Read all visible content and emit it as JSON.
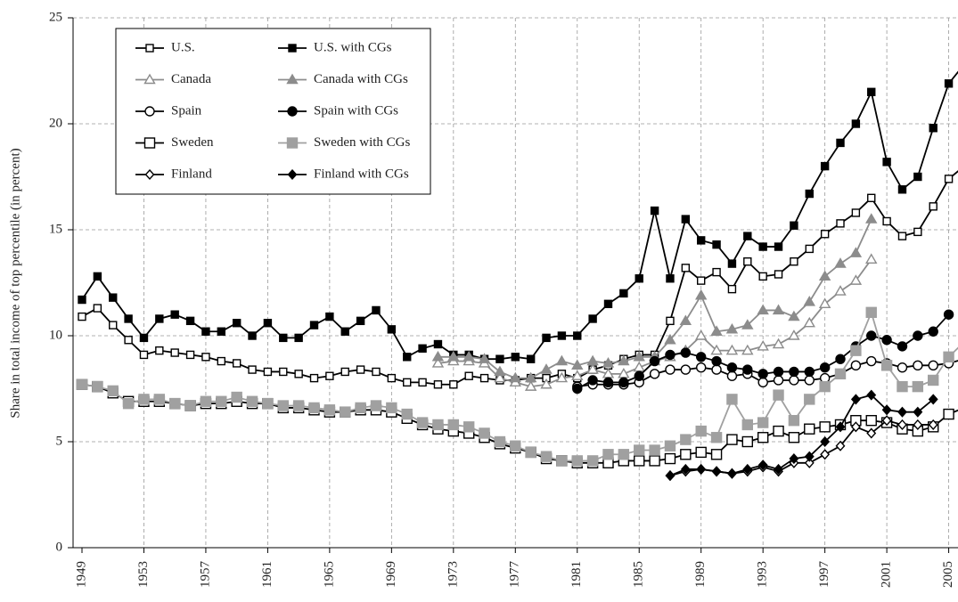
{
  "chart_data": {
    "type": "line",
    "y_label": "Share in total income of top percentile (in percent)",
    "xlim": [
      1949,
      2005.6
    ],
    "ylim": [
      0,
      25
    ],
    "xticks": [
      1949,
      1953,
      1957,
      1961,
      1965,
      1969,
      1973,
      1977,
      1981,
      1985,
      1989,
      1993,
      1997,
      2001,
      2005
    ],
    "yticks": [
      0,
      5,
      10,
      15,
      20,
      25
    ],
    "grid": true,
    "legend": "upper left",
    "series": [
      {
        "name": "U.S.",
        "color": "#000000",
        "marker": "square",
        "filled": false,
        "x": [
          1949,
          1950,
          1951,
          1952,
          1953,
          1954,
          1955,
          1956,
          1957,
          1958,
          1959,
          1960,
          1961,
          1962,
          1963,
          1964,
          1965,
          1966,
          1967,
          1968,
          1969,
          1970,
          1971,
          1972,
          1973,
          1974,
          1975,
          1976,
          1977,
          1978,
          1979,
          1980,
          1981,
          1982,
          1983,
          1984,
          1985,
          1986,
          1987,
          1988,
          1989,
          1990,
          1991,
          1992,
          1993,
          1994,
          1995,
          1996,
          1997,
          1998,
          1999,
          2000,
          2001,
          2002,
          2003,
          2004,
          2005,
          2006
        ],
        "values": [
          10.9,
          11.3,
          10.5,
          9.8,
          9.1,
          9.3,
          9.2,
          9.1,
          9.0,
          8.8,
          8.7,
          8.4,
          8.3,
          8.3,
          8.2,
          8.0,
          8.1,
          8.3,
          8.4,
          8.3,
          8.0,
          7.8,
          7.8,
          7.7,
          7.7,
          8.1,
          8.0,
          7.9,
          7.9,
          8.0,
          8.0,
          8.2,
          8.0,
          8.4,
          8.6,
          8.9,
          9.1,
          9.1,
          10.7,
          13.2,
          12.6,
          13.0,
          12.2,
          13.5,
          12.8,
          12.9,
          13.5,
          14.1,
          14.8,
          15.3,
          15.8,
          16.5,
          15.4,
          14.7,
          14.9,
          16.1,
          17.4,
          18.0
        ]
      },
      {
        "name": "U.S. with CGs",
        "color": "#000000",
        "marker": "square",
        "filled": true,
        "x": [
          1949,
          1950,
          1951,
          1952,
          1953,
          1954,
          1955,
          1956,
          1957,
          1958,
          1959,
          1960,
          1961,
          1962,
          1963,
          1964,
          1965,
          1966,
          1967,
          1968,
          1969,
          1970,
          1971,
          1972,
          1973,
          1974,
          1975,
          1976,
          1977,
          1978,
          1979,
          1980,
          1981,
          1982,
          1983,
          1984,
          1985,
          1986,
          1987,
          1988,
          1989,
          1990,
          1991,
          1992,
          1993,
          1994,
          1995,
          1996,
          1997,
          1998,
          1999,
          2000,
          2001,
          2002,
          2003,
          2004,
          2005,
          2006
        ],
        "values": [
          11.7,
          12.8,
          11.8,
          10.8,
          9.9,
          10.8,
          11.0,
          10.7,
          10.2,
          10.2,
          10.6,
          10.0,
          10.6,
          9.9,
          9.9,
          10.5,
          10.9,
          10.2,
          10.7,
          11.2,
          10.3,
          9.0,
          9.4,
          9.6,
          9.1,
          9.1,
          8.9,
          8.9,
          9.0,
          8.9,
          9.9,
          10.0,
          10.0,
          10.8,
          11.5,
          12.0,
          12.7,
          15.9,
          12.7,
          15.5,
          14.5,
          14.3,
          13.4,
          14.7,
          14.2,
          14.2,
          15.2,
          16.7,
          18.0,
          19.1,
          20.0,
          21.5,
          18.2,
          16.9,
          17.5,
          19.8,
          21.9,
          22.8
        ]
      },
      {
        "name": "Canada",
        "color": "#8c8c8c",
        "marker": "triangle",
        "filled": false,
        "x": [
          1972,
          1973,
          1974,
          1975,
          1976,
          1977,
          1978,
          1979,
          1980,
          1981,
          1982,
          1983,
          1984,
          1985,
          1986,
          1987,
          1988,
          1989,
          1990,
          1991,
          1992,
          1993,
          1994,
          1995,
          1996,
          1997,
          1998,
          1999,
          2000
        ],
        "values": [
          8.7,
          8.8,
          8.8,
          8.7,
          8.0,
          7.8,
          7.6,
          7.7,
          8.0,
          8.1,
          8.4,
          8.2,
          8.2,
          8.5,
          8.8,
          9.0,
          9.3,
          10.0,
          9.3,
          9.3,
          9.3,
          9.5,
          9.6,
          10.0,
          10.6,
          11.5,
          12.1,
          12.6,
          13.6
        ]
      },
      {
        "name": "Canada with CGs",
        "color": "#8c8c8c",
        "marker": "triangle",
        "filled": true,
        "x": [
          1972,
          1973,
          1974,
          1975,
          1976,
          1977,
          1978,
          1979,
          1980,
          1981,
          1982,
          1983,
          1984,
          1985,
          1986,
          1987,
          1988,
          1989,
          1990,
          1991,
          1992,
          1993,
          1994,
          1995,
          1996,
          1997,
          1998,
          1999,
          2000
        ],
        "values": [
          9.0,
          9.0,
          9.0,
          8.9,
          8.3,
          8.0,
          8.0,
          8.4,
          8.8,
          8.6,
          8.8,
          8.7,
          8.8,
          9.0,
          9.0,
          9.8,
          10.7,
          11.9,
          10.2,
          10.3,
          10.5,
          11.2,
          11.2,
          10.9,
          11.6,
          12.8,
          13.4,
          13.9,
          15.5
        ]
      },
      {
        "name": "Spain",
        "color": "#000000",
        "marker": "circle",
        "filled": false,
        "x": [
          1981,
          1982,
          1983,
          1984,
          1985,
          1986,
          1987,
          1988,
          1989,
          1990,
          1991,
          1992,
          1993,
          1994,
          1995,
          1996,
          1997,
          1998,
          1999,
          2000,
          2001,
          2002,
          2003,
          2004,
          2005,
          2006
        ],
        "values": [
          7.6,
          7.7,
          7.7,
          7.7,
          7.8,
          8.2,
          8.4,
          8.4,
          8.5,
          8.4,
          8.1,
          8.2,
          7.8,
          7.9,
          7.9,
          7.9,
          8.0,
          8.2,
          8.6,
          8.8,
          8.7,
          8.5,
          8.6,
          8.6,
          8.7,
          8.9
        ]
      },
      {
        "name": "Spain with CGs",
        "color": "#000000",
        "marker": "circle",
        "filled": true,
        "x": [
          1981,
          1982,
          1983,
          1984,
          1985,
          1986,
          1987,
          1988,
          1989,
          1990,
          1991,
          1992,
          1993,
          1994,
          1995,
          1996,
          1997,
          1998,
          1999,
          2000,
          2001,
          2002,
          2003,
          2004,
          2005
        ],
        "values": [
          7.5,
          7.9,
          7.8,
          7.8,
          8.1,
          8.8,
          9.1,
          9.2,
          9.0,
          8.8,
          8.5,
          8.4,
          8.2,
          8.3,
          8.3,
          8.3,
          8.5,
          8.9,
          9.5,
          10.0,
          9.8,
          9.5,
          10.0,
          10.2,
          11.0
        ]
      },
      {
        "name": "Sweden",
        "color": "#000000",
        "marker": "big-square",
        "filled": false,
        "x": [
          1949,
          1950,
          1951,
          1952,
          1953,
          1954,
          1955,
          1956,
          1957,
          1958,
          1959,
          1960,
          1961,
          1962,
          1963,
          1964,
          1965,
          1966,
          1967,
          1968,
          1969,
          1970,
          1971,
          1972,
          1973,
          1974,
          1975,
          1976,
          1977,
          1978,
          1979,
          1980,
          1981,
          1982,
          1983,
          1984,
          1985,
          1986,
          1987,
          1988,
          1989,
          1990,
          1991,
          1992,
          1993,
          1994,
          1995,
          1996,
          1997,
          1998,
          1999,
          2000,
          2001,
          2002,
          2003,
          2004,
          2005,
          2006
        ],
        "values": [
          7.7,
          7.6,
          7.3,
          6.9,
          6.9,
          6.9,
          6.8,
          6.7,
          6.8,
          6.8,
          6.9,
          6.8,
          6.8,
          6.6,
          6.6,
          6.5,
          6.4,
          6.4,
          6.5,
          6.5,
          6.4,
          6.1,
          5.8,
          5.6,
          5.5,
          5.4,
          5.2,
          4.9,
          4.7,
          4.5,
          4.2,
          4.1,
          4.0,
          4.0,
          4.0,
          4.1,
          4.1,
          4.1,
          4.2,
          4.4,
          4.5,
          4.4,
          5.1,
          5.0,
          5.2,
          5.5,
          5.2,
          5.6,
          5.7,
          5.8,
          6.0,
          6.0,
          5.9,
          5.6,
          5.5,
          5.7,
          6.3,
          6.6
        ]
      },
      {
        "name": "Sweden with CGs",
        "color": "#a0a0a0",
        "marker": "big-square",
        "filled": true,
        "x": [
          1949,
          1950,
          1951,
          1952,
          1953,
          1954,
          1955,
          1956,
          1957,
          1958,
          1959,
          1960,
          1961,
          1962,
          1963,
          1964,
          1965,
          1966,
          1967,
          1968,
          1969,
          1970,
          1971,
          1972,
          1973,
          1974,
          1975,
          1976,
          1977,
          1978,
          1979,
          1980,
          1981,
          1982,
          1983,
          1984,
          1985,
          1986,
          1987,
          1988,
          1989,
          1990,
          1991,
          1992,
          1993,
          1994,
          1995,
          1996,
          1997,
          1998,
          1999,
          2000,
          2001,
          2002,
          2003,
          2004,
          2005,
          2006
        ],
        "values": [
          7.7,
          7.6,
          7.4,
          6.8,
          7.0,
          7.0,
          6.8,
          6.7,
          6.9,
          6.9,
          7.1,
          6.9,
          6.8,
          6.7,
          6.7,
          6.6,
          6.5,
          6.4,
          6.6,
          6.7,
          6.6,
          6.3,
          5.9,
          5.8,
          5.8,
          5.7,
          5.4,
          5.0,
          4.8,
          4.5,
          4.3,
          4.1,
          4.1,
          4.1,
          4.4,
          4.4,
          4.6,
          4.6,
          4.8,
          5.1,
          5.5,
          5.2,
          7.0,
          5.8,
          5.9,
          7.2,
          6.0,
          7.0,
          7.6,
          8.2,
          9.3,
          11.1,
          8.6,
          7.6,
          7.6,
          7.9,
          9.0,
          9.7
        ]
      },
      {
        "name": "Finland",
        "color": "#000000",
        "marker": "diamond",
        "filled": false,
        "x": [
          1987,
          1988,
          1989,
          1990,
          1991,
          1992,
          1993,
          1994,
          1995,
          1996,
          1997,
          1998,
          1999,
          2000,
          2001,
          2002,
          2003,
          2004
        ],
        "values": [
          3.4,
          3.6,
          3.7,
          3.6,
          3.5,
          3.6,
          3.8,
          3.6,
          4.0,
          4.0,
          4.4,
          4.8,
          5.7,
          5.4,
          6.0,
          5.8,
          5.8,
          5.8
        ]
      },
      {
        "name": "Finland with CGs",
        "color": "#000000",
        "marker": "diamond",
        "filled": true,
        "x": [
          1987,
          1988,
          1989,
          1990,
          1991,
          1992,
          1993,
          1994,
          1995,
          1996,
          1997,
          1998,
          1999,
          2000,
          2001,
          2002,
          2003,
          2004
        ],
        "values": [
          3.4,
          3.7,
          3.7,
          3.6,
          3.5,
          3.7,
          3.9,
          3.7,
          4.2,
          4.3,
          5.0,
          5.7,
          7.0,
          7.2,
          6.5,
          6.4,
          6.4,
          7.0
        ]
      }
    ]
  }
}
